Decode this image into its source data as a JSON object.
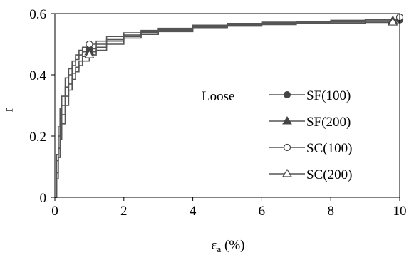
{
  "chart_data": {
    "type": "line",
    "title": "",
    "xlabel_symbol": "ε",
    "xlabel_sub": "a",
    "xlabel_unit": " (%)",
    "ylabel": "r",
    "xlim": [
      0,
      10
    ],
    "ylim": [
      0,
      0.6
    ],
    "xticks": [
      "0",
      "2",
      "4",
      "6",
      "8",
      "10"
    ],
    "yticks": [
      "0",
      "0.2",
      "0.4",
      "0.6"
    ],
    "grid": false,
    "legend_placement": "center-right",
    "annotations": [
      {
        "text": "Loose"
      }
    ],
    "series": [
      {
        "name": "SF(100)",
        "marker": "filled-circle",
        "color": "#555555",
        "x": [
          0,
          0.05,
          0.1,
          0.15,
          0.2,
          0.3,
          0.4,
          0.5,
          0.6,
          0.7,
          0.8,
          1,
          1.2,
          1.5,
          2,
          2.5,
          3,
          4,
          5,
          6,
          7,
          8,
          9,
          10
        ],
        "y": [
          0,
          0.12,
          0.2,
          0.26,
          0.3,
          0.36,
          0.4,
          0.43,
          0.45,
          0.465,
          0.475,
          0.485,
          0.5,
          0.515,
          0.53,
          0.54,
          0.548,
          0.558,
          0.565,
          0.57,
          0.573,
          0.575,
          0.577,
          0.58
        ]
      },
      {
        "name": "SF(200)",
        "marker": "filled-triangle",
        "color": "#555555",
        "x": [
          0,
          0.05,
          0.1,
          0.15,
          0.2,
          0.3,
          0.4,
          0.5,
          0.6,
          0.7,
          0.8,
          1,
          1.2,
          1.5,
          2,
          2.5,
          3,
          4,
          5,
          6,
          7,
          8,
          9,
          9.8
        ],
        "y": [
          0,
          0.08,
          0.16,
          0.22,
          0.27,
          0.33,
          0.37,
          0.405,
          0.425,
          0.445,
          0.46,
          0.475,
          0.49,
          0.51,
          0.525,
          0.537,
          0.545,
          0.555,
          0.562,
          0.567,
          0.57,
          0.573,
          0.575,
          0.577
        ]
      },
      {
        "name": "SC(100)",
        "marker": "open-circle",
        "color": "#555555",
        "x": [
          0,
          0.05,
          0.1,
          0.15,
          0.2,
          0.3,
          0.4,
          0.5,
          0.6,
          0.7,
          0.8,
          1,
          1.2,
          1.5,
          2,
          2.5,
          3,
          4,
          5,
          6,
          7,
          8,
          9,
          10
        ],
        "y": [
          0,
          0.14,
          0.23,
          0.29,
          0.33,
          0.39,
          0.42,
          0.445,
          0.465,
          0.48,
          0.49,
          0.5,
          0.51,
          0.525,
          0.537,
          0.545,
          0.552,
          0.562,
          0.568,
          0.572,
          0.575,
          0.578,
          0.581,
          0.588
        ]
      },
      {
        "name": "SC(200)",
        "marker": "open-triangle",
        "color": "#555555",
        "x": [
          0,
          0.05,
          0.1,
          0.15,
          0.2,
          0.3,
          0.4,
          0.5,
          0.6,
          0.7,
          0.8,
          1,
          1.2,
          1.5,
          2,
          2.5,
          3,
          4,
          5,
          6,
          7,
          8,
          9,
          9.8
        ],
        "y": [
          0,
          0.06,
          0.13,
          0.19,
          0.24,
          0.3,
          0.35,
          0.385,
          0.41,
          0.43,
          0.445,
          0.465,
          0.48,
          0.5,
          0.52,
          0.532,
          0.541,
          0.552,
          0.559,
          0.564,
          0.567,
          0.569,
          0.571,
          0.572
        ]
      }
    ]
  }
}
